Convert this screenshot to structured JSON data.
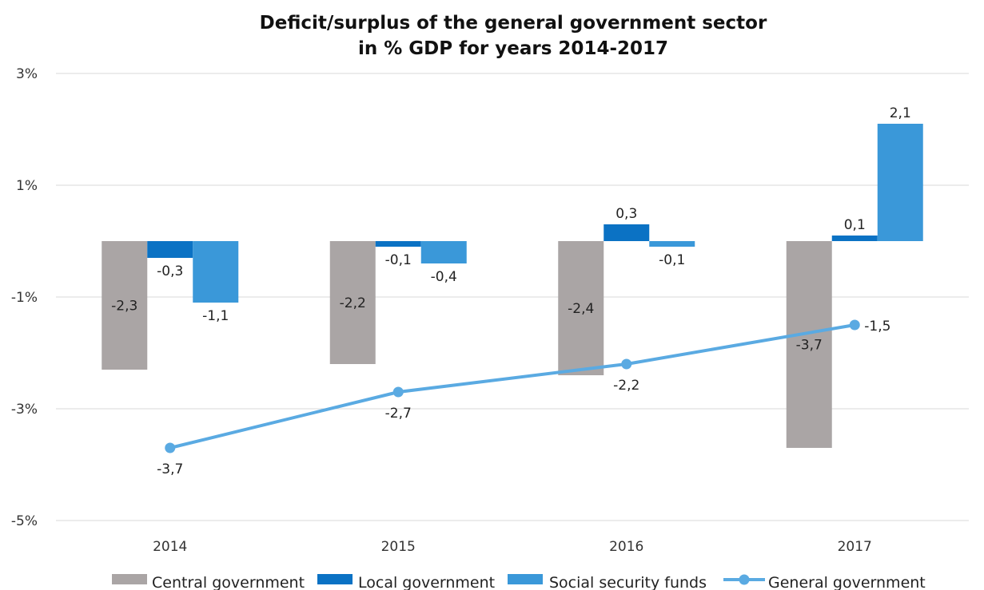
{
  "chart_data": {
    "type": "bar",
    "title_lines": [
      "Deficit/surplus of the general government sector",
      "in % GDP for years 2014-2017"
    ],
    "categories": [
      "2014",
      "2015",
      "2016",
      "2017"
    ],
    "ylim": [
      -5,
      3
    ],
    "y_ticks": [
      3,
      1,
      -1,
      -3,
      -5
    ],
    "y_tick_labels": [
      "3%",
      "1%",
      "-1%",
      "-3%",
      "-5%"
    ],
    "grid": true,
    "legend_position": "bottom",
    "series": [
      {
        "name": "Central government",
        "kind": "bar",
        "color": "#aaa5a5",
        "values": [
          -2.3,
          -2.2,
          -2.4,
          -3.7
        ],
        "labels": [
          "-2,3",
          "-2,2",
          "-2,4",
          "-3,7"
        ]
      },
      {
        "name": "Local government",
        "kind": "bar",
        "color": "#0b72c4",
        "values": [
          -0.3,
          -0.1,
          0.3,
          0.1
        ],
        "labels": [
          "-0,3",
          "-0,1",
          "0,3",
          "0,1"
        ]
      },
      {
        "name": "Social security funds",
        "kind": "bar",
        "color": "#3a98d9",
        "values": [
          -1.1,
          -0.4,
          -0.1,
          2.1
        ],
        "labels": [
          "-1,1",
          "-0,4",
          "-0,1",
          "2,1"
        ]
      },
      {
        "name": "General government",
        "kind": "line",
        "color": "#5aaae2",
        "values": [
          -3.7,
          -2.7,
          -2.2,
          -1.5
        ],
        "labels": [
          "-3,7",
          "-2,7",
          "-2,2",
          "-1,5"
        ]
      }
    ]
  }
}
